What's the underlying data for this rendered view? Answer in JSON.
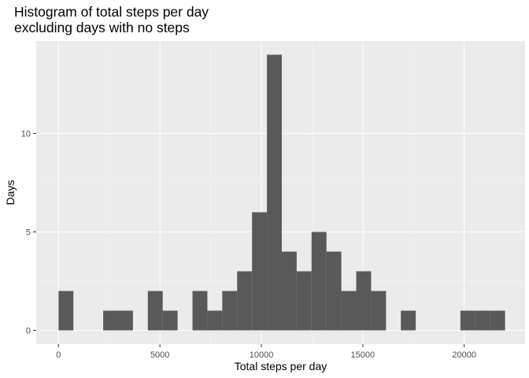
{
  "chart_data": {
    "type": "bar",
    "title_line1": "Histogram of total steps per day",
    "title_line2": "excluding days with no steps",
    "xlabel": "Total steps per day",
    "ylabel": "Days",
    "xlim": [
      -1100,
      23000
    ],
    "ylim": [
      -0.7,
      14.7
    ],
    "x_ticks": [
      0,
      5000,
      10000,
      15000,
      20000
    ],
    "x_tick_labels": [
      "0",
      "5000",
      "10000",
      "15000",
      "20000"
    ],
    "y_ticks": [
      0,
      5,
      10
    ],
    "y_tick_labels": [
      "0",
      "5",
      "10"
    ],
    "bin_start": 0,
    "bin_width": 733.8,
    "counts": [
      2,
      0,
      0,
      1,
      1,
      0,
      2,
      1,
      0,
      2,
      1,
      2,
      3,
      6,
      14,
      4,
      3,
      5,
      4,
      2,
      3,
      2,
      0,
      1,
      0,
      0,
      0,
      1,
      1,
      1
    ],
    "grid": true,
    "legend": "none",
    "colors": {
      "bar": "#595959",
      "panel": "#ebebeb",
      "grid_major": "#ffffff"
    }
  }
}
